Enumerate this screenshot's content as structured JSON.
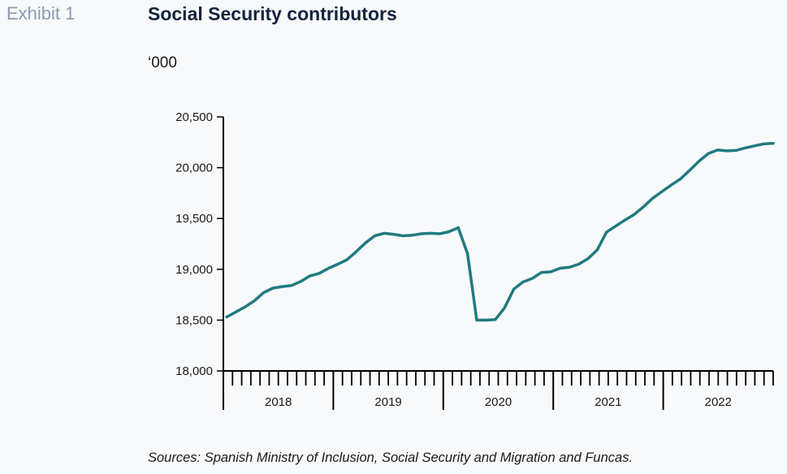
{
  "header": {
    "exhibit_label": "Exhibit 1",
    "title": "Social Security contributors",
    "unit": "‘000"
  },
  "footer": {
    "source": "Sources: Spanish Ministry of Inclusion, Social Security and Migration and Funcas."
  },
  "colors": {
    "line": "#1f7a80",
    "axis": "#000000",
    "exhibit": "#8a9bb3",
    "title": "#13223d"
  },
  "chart_data": {
    "type": "line",
    "title": "Social Security contributors",
    "ylabel": "‘000",
    "ylim": [
      18000,
      20500
    ],
    "yticks": [
      18000,
      18500,
      19000,
      19500,
      20000,
      20500
    ],
    "ytick_labels": [
      "18,000",
      "18,500",
      "19,000",
      "19,500",
      "20,000",
      "20,500"
    ],
    "year_labels": [
      "2018",
      "2019",
      "2020",
      "2021",
      "2022"
    ],
    "months_per_year": 12,
    "grid": false,
    "series": [
      {
        "values": [
          18530,
          18580,
          18630,
          18690,
          18770,
          18815,
          18830,
          18840,
          18880,
          18935,
          18960,
          19010,
          19050,
          19095,
          19175,
          19260,
          19330,
          19355,
          19345,
          19330,
          19335,
          19350,
          19355,
          19350,
          19370,
          19410,
          19155,
          18500,
          18500,
          18505,
          18620,
          18805,
          18875,
          18910,
          18970,
          18975,
          19010,
          19020,
          19050,
          19105,
          19190,
          19365,
          19425,
          19485,
          19540,
          19615,
          19700,
          19765,
          19830,
          19890,
          19975,
          20065,
          20140,
          20175,
          20165,
          20170,
          20195,
          20215,
          20235,
          20240
        ]
      }
    ]
  }
}
